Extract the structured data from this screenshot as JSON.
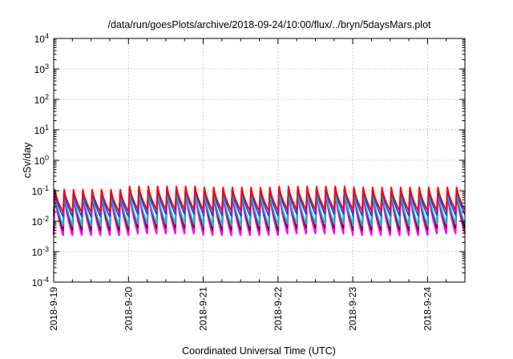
{
  "chart_data": {
    "type": "line",
    "title": "/data/run/goesPlots/archive/2018-09-24/10:00/flux/../bryn/5daysMars.plot",
    "xlabel": "Coordinated Universal Time (UTC)",
    "ylabel": "cSv/day",
    "yscale": "log",
    "ylim": [
      0.0001,
      10000
    ],
    "xlim": [
      "2018-09-19 00:00",
      "2018-09-24 12:00"
    ],
    "x_ticks": [
      "2018-9-19",
      "2018-9-20",
      "2018-9-21",
      "2018-9-22",
      "2018-9-23",
      "2018-9-24"
    ],
    "y_ticks": [
      {
        "base": "10",
        "exp": "-4"
      },
      {
        "base": "10",
        "exp": "-3"
      },
      {
        "base": "10",
        "exp": "-2"
      },
      {
        "base": "10",
        "exp": "-1"
      },
      {
        "base": "10",
        "exp": "0"
      },
      {
        "base": "10",
        "exp": "1"
      },
      {
        "base": "10",
        "exp": "2"
      },
      {
        "base": "10",
        "exp": "3"
      },
      {
        "base": "10",
        "exp": "4"
      }
    ],
    "grid": true,
    "cycles_per_day": 8,
    "series": [
      {
        "color": "#ff00ff",
        "peak": [
          0.09,
          0.11,
          0.1,
          0.11,
          0.1,
          0.1
        ],
        "trough": [
          0.0035,
          0.004,
          0.0035,
          0.004,
          0.0035,
          0.004
        ]
      },
      {
        "color": "#800000",
        "peak": [
          0.1,
          0.12,
          0.11,
          0.12,
          0.11,
          0.11
        ],
        "trough": [
          0.005,
          0.006,
          0.005,
          0.006,
          0.005,
          0.006
        ]
      },
      {
        "color": "#00c8c8",
        "peak": [
          0.09,
          0.1,
          0.1,
          0.1,
          0.1,
          0.1
        ],
        "trough": [
          0.007,
          0.008,
          0.007,
          0.008,
          0.007,
          0.008
        ]
      },
      {
        "color": "#2040ff",
        "peak": [
          0.1,
          0.13,
          0.12,
          0.13,
          0.12,
          0.12
        ],
        "trough": [
          0.014,
          0.017,
          0.015,
          0.017,
          0.015,
          0.016
        ]
      },
      {
        "color": "#ff0000",
        "peak": [
          0.11,
          0.14,
          0.13,
          0.14,
          0.13,
          0.13
        ],
        "trough": [
          0.02,
          0.024,
          0.022,
          0.024,
          0.022,
          0.023
        ]
      }
    ]
  }
}
